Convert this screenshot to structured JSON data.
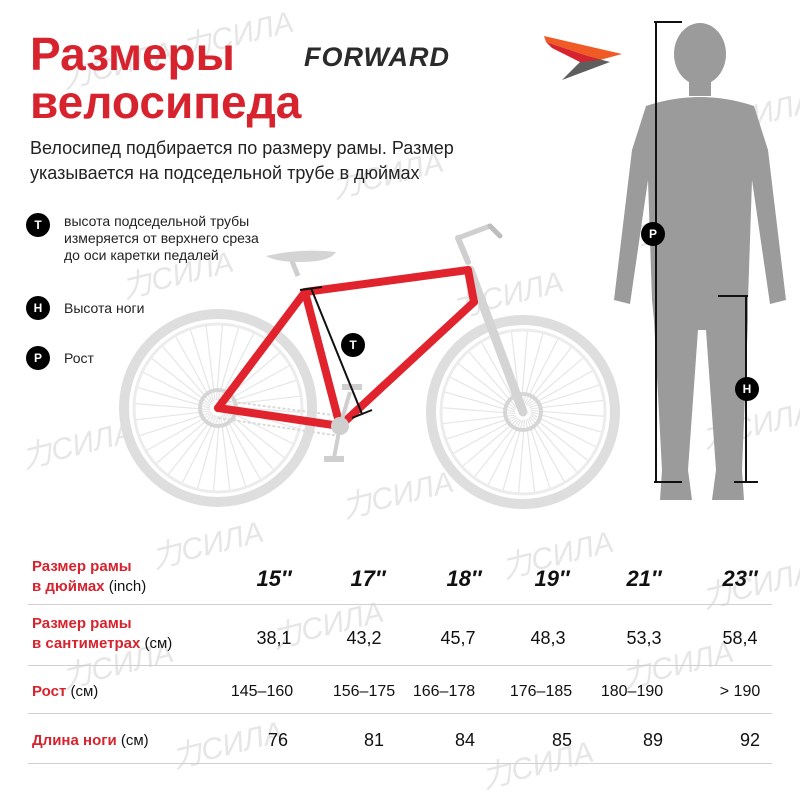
{
  "title": {
    "line1": "Размеры",
    "line2": "велосипеда"
  },
  "brand": {
    "name": "FORWARD",
    "colors": {
      "red": "#d7232d",
      "orange": "#f05a24",
      "grey": "#5e5e5e"
    }
  },
  "intro": "Велосипед подбирается по размеру рамы. Размер указывается на подседельной трубе в дюймах",
  "legend": [
    {
      "key": "T",
      "text": "высота подседельной трубы измеряется от верхнего среза до оси каретки педалей"
    },
    {
      "key": "H",
      "text": "Высота ноги"
    },
    {
      "key": "P",
      "text": "Рост"
    }
  ],
  "markers": {
    "bike_t": "T",
    "person_p": "P",
    "person_h": "H"
  },
  "watermark": "力СИЛА",
  "table": {
    "columns": [
      "15″",
      "17″",
      "18″",
      "19″",
      "21″",
      "23″"
    ],
    "rows": [
      {
        "label_bold_1": "Размер рамы",
        "label_bold_2": "в дюймах",
        "unit": "(inch)",
        "values": [
          "15″",
          "17″",
          "18″",
          "19″",
          "21″",
          "23″"
        ]
      },
      {
        "label_bold_1": "Размер рамы",
        "label_bold_2": "в сантиметрах",
        "unit": "(см)",
        "values": [
          "38,1",
          "43,2",
          "45,7",
          "48,3",
          "53,3",
          "58,4"
        ]
      },
      {
        "label_bold_1": "Рост",
        "unit": "(см)",
        "values": [
          "145–160",
          "156–175",
          "166–178",
          "176–185",
          "180–190",
          "> 190"
        ]
      },
      {
        "label_bold_1": "Длина ноги",
        "unit": "(см)",
        "values": [
          "76",
          "81",
          "84",
          "85",
          "89",
          "92"
        ]
      }
    ]
  }
}
